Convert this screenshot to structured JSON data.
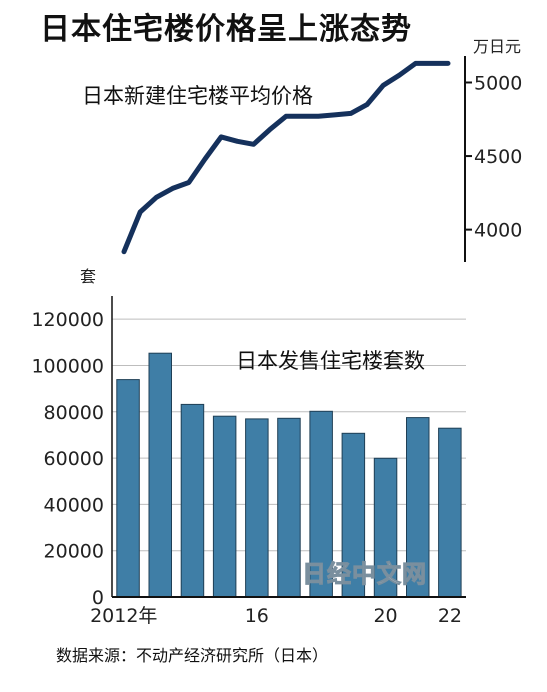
{
  "title": "日本住宅楼价格呈上涨态势",
  "source": "数据来源：不动产经济研究所（日本）",
  "watermark": "日经中文网",
  "colors": {
    "line": "#15315c",
    "bar": "#3f7ea6",
    "bar_edge": "#1f3f55",
    "grid": "#bdbdbd"
  },
  "chart_data": [
    {
      "type": "line",
      "series": [
        {
          "name": "日本新建住宅楼平均价格",
          "x": [
            2012,
            2012.5,
            2013,
            2013.5,
            2014,
            2014.5,
            2015,
            2015.5,
            2016,
            2016.5,
            2017,
            2017.5,
            2018,
            2018.5,
            2019,
            2019.5,
            2020,
            2020.5,
            2021,
            2021.5,
            2022
          ],
          "values": [
            3850,
            4120,
            4220,
            4280,
            4320,
            4480,
            4630,
            4600,
            4580,
            4680,
            4770,
            4770,
            4770,
            4780,
            4790,
            4850,
            4980,
            5050,
            5130,
            5130,
            5130
          ]
        }
      ],
      "ylim": [
        3780,
        5180
      ],
      "yticks": [
        4000,
        4500,
        5000
      ],
      "unit": "万日元"
    },
    {
      "type": "bar",
      "categories": [
        "2012",
        "2013",
        "2014",
        "2015",
        "2016",
        "2017",
        "2018",
        "2019",
        "2020",
        "2021",
        "2022"
      ],
      "series": [
        {
          "name": "日本发售住宅楼套数",
          "values": [
            93900,
            105300,
            83200,
            78100,
            76900,
            77200,
            80200,
            70700,
            59900,
            77500,
            72900
          ]
        }
      ],
      "ylim": [
        0,
        130000
      ],
      "yticks": [
        0,
        20000,
        40000,
        60000,
        80000,
        100000,
        120000
      ],
      "xtick_labels": [
        {
          "category": "2012",
          "label": "2012年"
        },
        {
          "category": "2016",
          "label": "16"
        },
        {
          "category": "2020",
          "label": "20"
        },
        {
          "category": "2022",
          "label": "22"
        }
      ],
      "unit": "套",
      "grid": true
    }
  ]
}
